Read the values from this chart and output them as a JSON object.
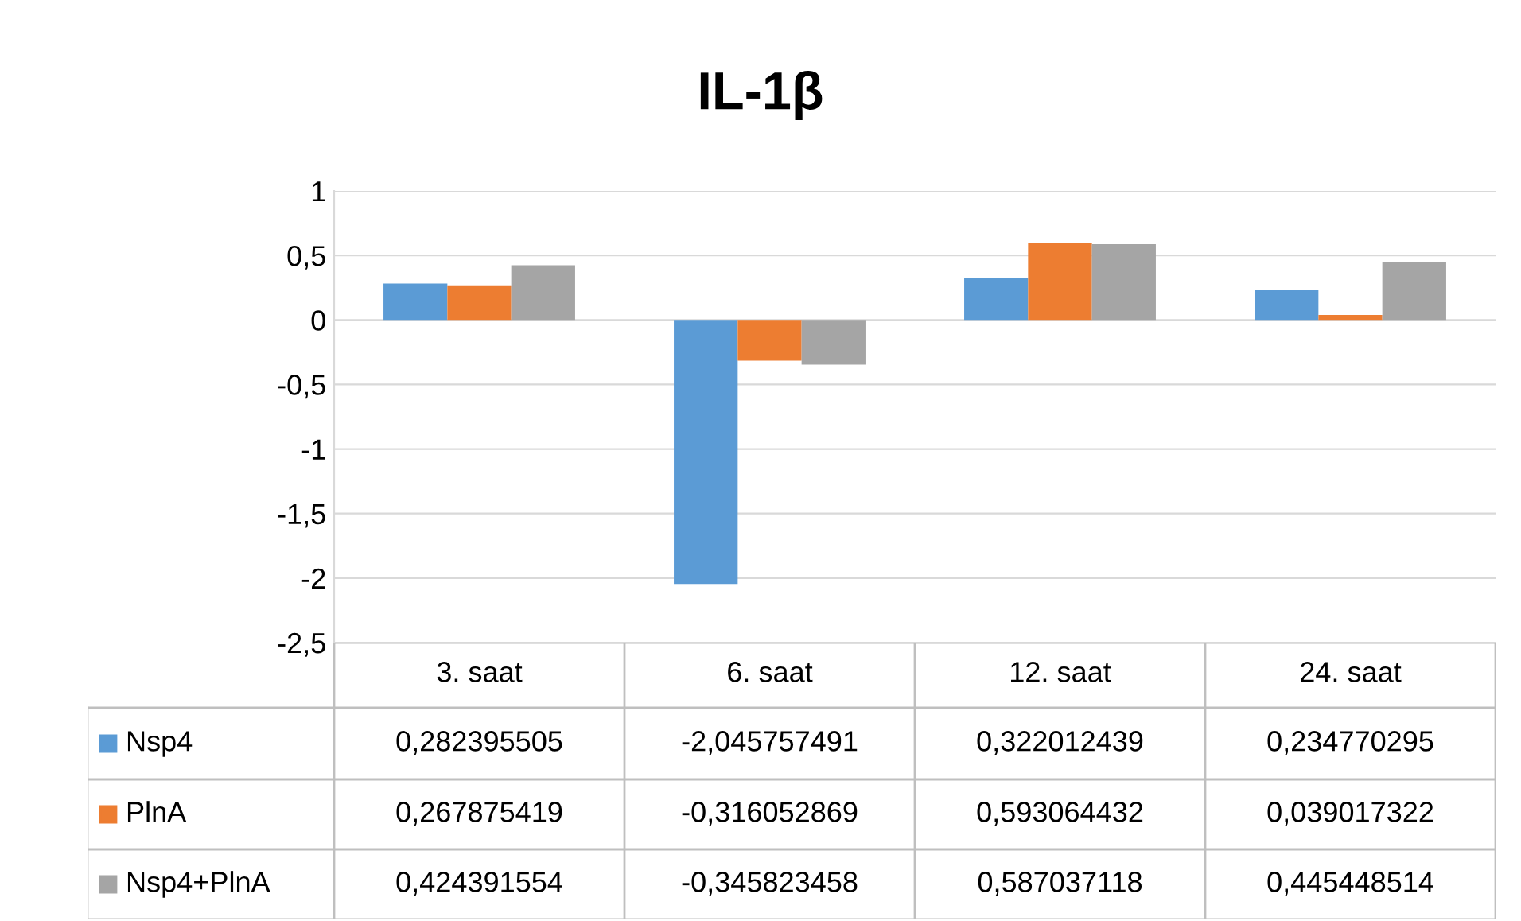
{
  "chart_data": {
    "type": "bar",
    "title": "IL-1β",
    "categories": [
      "3. saat",
      "6. saat",
      "12. saat",
      "24. saat"
    ],
    "series": [
      {
        "name": "Nsp4",
        "color": "#5b9bd5",
        "values": [
          0.282395505,
          -2.045757491,
          0.322012439,
          0.234770295
        ],
        "value_labels": [
          "0,282395505",
          "-2,045757491",
          "0,322012439",
          "0,234770295"
        ]
      },
      {
        "name": "PlnA",
        "color": "#ed7d31",
        "values": [
          0.267875419,
          -0.316052869,
          0.593064432,
          0.039017322
        ],
        "value_labels": [
          "0,267875419",
          "-0,316052869",
          "0,593064432",
          "0,039017322"
        ]
      },
      {
        "name": "Nsp4+PlnA",
        "color": "#a5a5a5",
        "values": [
          0.424391554,
          -0.345823458,
          0.587037118,
          0.445448514
        ],
        "value_labels": [
          "0,424391554",
          "-0,345823458",
          "0,587037118",
          "0,445448514"
        ]
      }
    ],
    "ylim": [
      -2.5,
      1
    ],
    "yticks": [
      1,
      {
        "value": 0.5,
        "label": "0,5"
      },
      0,
      {
        "value": -0.5,
        "label": "-0,5"
      },
      -1,
      {
        "value": -1.5,
        "label": "-1,5"
      },
      -2,
      {
        "value": -2.5,
        "label": "-2,5"
      }
    ],
    "grid": "y",
    "legend": "bottom"
  }
}
